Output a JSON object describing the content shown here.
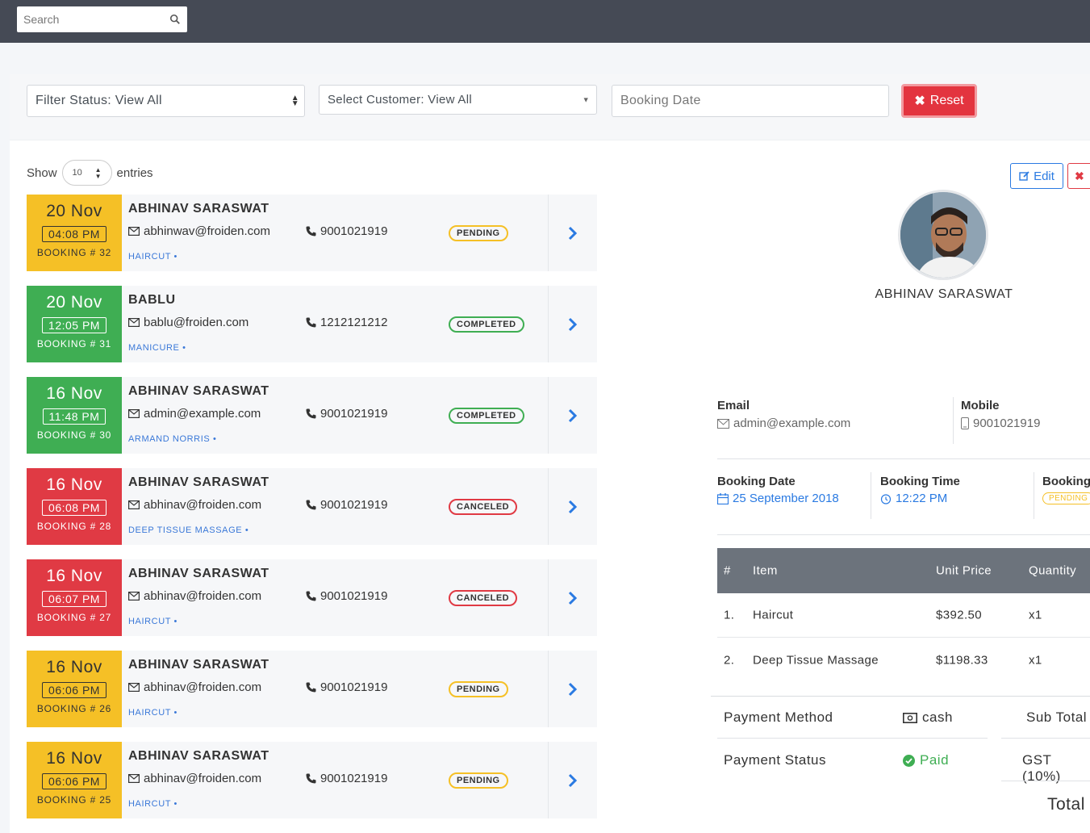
{
  "search": {
    "placeholder": "Search"
  },
  "filters": {
    "status": "Filter Status: View All",
    "customer": "Select Customer: View All",
    "date_placeholder": "Booking Date",
    "reset_label": "Reset"
  },
  "table_controls": {
    "show_label": "Show",
    "entries_value": "10",
    "entries_label": "entries"
  },
  "bookings": [
    {
      "day": "20 Nov",
      "time": "04:08 PM",
      "booking_no": "BOOKING # 32",
      "name": "ABHINAV SARASWAT",
      "email": "abhinwav@froiden.com",
      "phone": "9001021919",
      "service": "HAIRCUT •",
      "status": "PENDING",
      "color": "yellow"
    },
    {
      "day": "20 Nov",
      "time": "12:05 PM",
      "booking_no": "BOOKING # 31",
      "name": "BABLU",
      "email": "bablu@froiden.com",
      "phone": "1212121212",
      "service": "MANICURE •",
      "status": "COMPLETED",
      "color": "green"
    },
    {
      "day": "16 Nov",
      "time": "11:48 PM",
      "booking_no": "BOOKING # 30",
      "name": "ABHINAV SARASWAT",
      "email": "admin@example.com",
      "phone": "9001021919",
      "service": "ARMAND NORRIS •",
      "status": "COMPLETED",
      "color": "green"
    },
    {
      "day": "16 Nov",
      "time": "06:08 PM",
      "booking_no": "BOOKING # 28",
      "name": "ABHINAV SARASWAT",
      "email": "abhinav@froiden.com",
      "phone": "9001021919",
      "service": "DEEP TISSUE MASSAGE •",
      "status": "CANCELED",
      "color": "red"
    },
    {
      "day": "16 Nov",
      "time": "06:07 PM",
      "booking_no": "BOOKING # 27",
      "name": "ABHINAV SARASWAT",
      "email": "abhinav@froiden.com",
      "phone": "9001021919",
      "service": "HAIRCUT •",
      "status": "CANCELED",
      "color": "red"
    },
    {
      "day": "16 Nov",
      "time": "06:06 PM",
      "booking_no": "BOOKING # 26",
      "name": "ABHINAV SARASWAT",
      "email": "abhinav@froiden.com",
      "phone": "9001021919",
      "service": "HAIRCUT •",
      "status": "PENDING",
      "color": "yellow"
    },
    {
      "day": "16 Nov",
      "time": "06:06 PM",
      "booking_no": "BOOKING # 25",
      "name": "ABHINAV SARASWAT",
      "email": "abhinav@froiden.com",
      "phone": "9001021919",
      "service": "HAIRCUT •",
      "status": "PENDING",
      "color": "yellow"
    }
  ],
  "detail": {
    "edit_label": "Edit",
    "customer_name": "ABHINAV SARASWAT",
    "email_label": "Email",
    "email_value": "admin@example.com",
    "mobile_label": "Mobile",
    "mobile_value": "9001021919",
    "booking_date_label": "Booking Date",
    "booking_date_value": "25 September 2018",
    "booking_time_label": "Booking Time",
    "booking_time_value": "12:22 PM",
    "booking_status_label": "Booking S",
    "booking_status_value": "PENDING",
    "table_headers": [
      "#",
      "Item",
      "Unit Price",
      "Quantity"
    ],
    "items": [
      {
        "no": "1.",
        "item": "Haircut",
        "price": "$392.50",
        "qty": "x1"
      },
      {
        "no": "2.",
        "item": "Deep Tissue Massage",
        "price": "$1198.33",
        "qty": "x1"
      }
    ],
    "payment_method_label": "Payment Method",
    "payment_method_value": "cash",
    "payment_status_label": "Payment Status",
    "payment_status_value": "Paid",
    "sub_total_label": "Sub Total",
    "gst_label": "GST (10%)",
    "total_label": "Total"
  },
  "colors": {
    "yellow": "#f5c026",
    "green": "#3fae53",
    "red": "#e03a44",
    "blue": "#2a7ae2",
    "topbar": "#454a55"
  }
}
